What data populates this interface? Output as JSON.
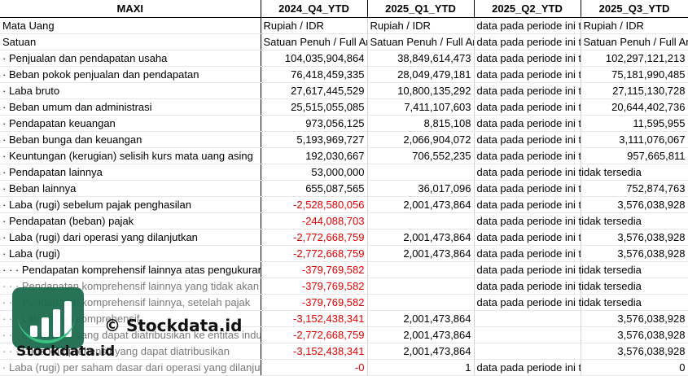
{
  "header": {
    "company": "MAXI",
    "periods": [
      "2024_Q4_YTD",
      "2025_Q1_YTD",
      "2025_Q2_YTD",
      "2025_Q3_YTD"
    ]
  },
  "rows": [
    {
      "label": "Mata Uang",
      "values": [
        "Rupiah / IDR",
        "Rupiah / IDR",
        "data pada periode ini tidak tersedia",
        "Rupiah / IDR"
      ],
      "kind": [
        "t",
        "t",
        "t",
        "t"
      ]
    },
    {
      "label": "Satuan",
      "values": [
        "Satuan Penuh / Full Amount",
        "Satuan Penuh / Full Amount",
        "data pada periode ini tidak tersedia",
        "Satuan Penuh / Full Amount"
      ],
      "kind": [
        "t",
        "t",
        "t",
        "t"
      ]
    },
    {
      "label": "· Penjualan dan pendapatan usaha",
      "values": [
        "104,035,904,864",
        "38,849,614,473",
        "data pada periode ini tidak tersedia",
        "102,297,121,213"
      ],
      "kind": [
        "n",
        "n",
        "t",
        "n"
      ]
    },
    {
      "label": "· Beban pokok penjualan dan pendapatan",
      "values": [
        "76,418,459,335",
        "28,049,479,181",
        "data pada periode ini tidak tersedia",
        "75,181,990,485"
      ],
      "kind": [
        "n",
        "n",
        "t",
        "n"
      ]
    },
    {
      "label": "· Laba bruto",
      "values": [
        "27,617,445,529",
        "10,800,135,292",
        "data pada periode ini tidak tersedia",
        "27,115,130,728"
      ],
      "kind": [
        "n",
        "n",
        "t",
        "n"
      ]
    },
    {
      "label": "· Beban umum dan administrasi",
      "values": [
        "25,515,055,085",
        "7,411,107,603",
        "data pada periode ini tidak tersedia",
        "20,644,402,736"
      ],
      "kind": [
        "n",
        "n",
        "t",
        "n"
      ]
    },
    {
      "label": "· Pendapatan keuangan",
      "values": [
        "973,056,125",
        "8,815,108",
        "data pada periode ini tidak tersedia",
        "11,595,955"
      ],
      "kind": [
        "n",
        "n",
        "t",
        "n"
      ]
    },
    {
      "label": "· Beban bunga dan keuangan",
      "values": [
        "5,193,969,727",
        "2,066,904,072",
        "data pada periode ini tidak tersedia",
        "3,111,076,067"
      ],
      "kind": [
        "n",
        "n",
        "t",
        "n"
      ]
    },
    {
      "label": "· Keuntungan (kerugian) selisih kurs mata uang asing",
      "values": [
        "192,030,667",
        "706,552,235",
        "data pada periode ini tidak tersedia",
        "957,665,811"
      ],
      "kind": [
        "n",
        "n",
        "t",
        "n"
      ]
    },
    {
      "label": "· Pendapatan lainnya",
      "values": [
        "53,000,000",
        "",
        "data pada periode ini tidak tersedia",
        ""
      ],
      "kind": [
        "n",
        "n",
        "o",
        "n"
      ]
    },
    {
      "label": "· Beban lainnya",
      "values": [
        "655,087,565",
        "36,017,096",
        "data pada periode ini tidak tersedia",
        "752,874,763"
      ],
      "kind": [
        "n",
        "n",
        "t",
        "n"
      ]
    },
    {
      "label": "· Laba (rugi) sebelum pajak penghasilan",
      "values": [
        "-2,528,580,056",
        "2,001,473,864",
        "data pada periode ini tidak tersedia",
        "3,576,038,928"
      ],
      "kind": [
        "neg",
        "n",
        "t",
        "n"
      ]
    },
    {
      "label": "· Pendapatan (beban) pajak",
      "values": [
        "-244,088,703",
        "",
        "data pada periode ini tidak tersedia",
        ""
      ],
      "kind": [
        "neg",
        "n",
        "o",
        "n"
      ]
    },
    {
      "label": "· Laba (rugi) dari operasi yang dilanjutkan",
      "values": [
        "-2,772,668,759",
        "2,001,473,864",
        "data pada periode ini tidak tersedia",
        "3,576,038,928"
      ],
      "kind": [
        "neg",
        "n",
        "t",
        "n"
      ]
    },
    {
      "label": "· Laba (rugi)",
      "values": [
        "-2,772,668,759",
        "2,001,473,864",
        "data pada periode ini tidak tersedia",
        "3,576,038,928"
      ],
      "kind": [
        "neg",
        "n",
        "t",
        "n"
      ]
    },
    {
      "label": "· · · Pendapatan komprehensif lainnya atas pengukuran kembali",
      "values": [
        "-379,769,582",
        "",
        "data pada periode ini tidak tersedia",
        ""
      ],
      "kind": [
        "neg",
        "n",
        "o",
        "n"
      ]
    },
    {
      "label": "· · · Pendapatan komprehensif lainnya yang tidak akan direklasifikasi",
      "values": [
        "-379,769,582",
        "",
        "data pada periode ini tidak tersedia",
        ""
      ],
      "kind": [
        "neg",
        "n",
        "o",
        "n"
      ],
      "dim": true
    },
    {
      "label": "· · · Pendapatan komprehensif lainnya, setelah pajak",
      "values": [
        "-379,769,582",
        "",
        "data pada periode ini tidak tersedia",
        ""
      ],
      "kind": [
        "neg",
        "n",
        "o",
        "n"
      ],
      "dim": true
    },
    {
      "label": "· · · Laba (rugi) komprehensif",
      "values": [
        "-3,152,438,341",
        "2,001,473,864",
        "",
        "3,576,038,928"
      ],
      "kind": [
        "neg",
        "n",
        "t",
        "n"
      ],
      "dim": true
    },
    {
      "label": "· · · Laba (rugi) yang dapat diatribusikan ke entitas induk",
      "values": [
        "-2,772,668,759",
        "2,001,473,864",
        "",
        "3,576,038,928"
      ],
      "kind": [
        "neg",
        "n",
        "t",
        "n"
      ],
      "dim": true
    },
    {
      "label": "· · · Laba komprehensif yang dapat diatribusikan",
      "values": [
        "-3,152,438,341",
        "2,001,473,864",
        "",
        "3,576,038,928"
      ],
      "kind": [
        "neg",
        "n",
        "t",
        "n"
      ],
      "dim": true
    },
    {
      "label": "· Laba (rugi) per saham dasar dari operasi yang dilanjutkan",
      "values": [
        "-0",
        "1",
        "data pada periode ini tidak tersedia",
        "0"
      ],
      "kind": [
        "neg",
        "n",
        "t",
        "n"
      ],
      "dim": true
    }
  ],
  "watermark": {
    "center_text": "© Stockdata.id",
    "brand_text": "Stockdata.id"
  }
}
